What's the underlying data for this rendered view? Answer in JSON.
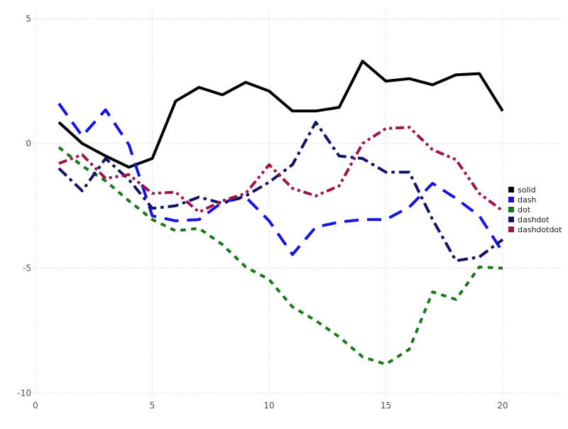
{
  "chart_data": {
    "type": "line",
    "title": "",
    "xlabel": "",
    "ylabel": "",
    "x_ticks": [
      0,
      5,
      10,
      15,
      20
    ],
    "y_ticks": [
      5,
      0,
      -5,
      -10
    ],
    "xlim": [
      0,
      20.6
    ],
    "ylim": [
      -10.4,
      5.3
    ],
    "grid": true,
    "legend_position": "right",
    "x": [
      1,
      2,
      3,
      4,
      5,
      6,
      7,
      8,
      9,
      10,
      11,
      12,
      13,
      14,
      15,
      16,
      17,
      18,
      19,
      20
    ],
    "series": [
      {
        "name": "solid",
        "color": "#000000",
        "dash_style": "solid",
        "values": [
          0.85,
          0.0,
          -0.5,
          -0.95,
          -0.6,
          1.7,
          2.25,
          1.95,
          2.45,
          2.1,
          1.3,
          1.3,
          1.45,
          3.3,
          2.5,
          2.6,
          2.35,
          2.75,
          2.8,
          1.3
        ]
      },
      {
        "name": "dash",
        "color": "#1414e6",
        "dash_style": "dash",
        "values": [
          1.6,
          0.3,
          1.35,
          -0.05,
          -2.9,
          -3.1,
          -3.05,
          -2.35,
          -2.15,
          -3.1,
          -4.45,
          -3.35,
          -3.15,
          -3.05,
          -3.05,
          -2.55,
          -1.6,
          -2.2,
          -2.9,
          -4.35
        ]
      },
      {
        "name": "dot",
        "color": "#187818",
        "dash_style": "dot",
        "values": [
          -0.15,
          -0.9,
          -1.5,
          -2.3,
          -3.05,
          -3.5,
          -3.4,
          -4.05,
          -4.95,
          -5.45,
          -6.55,
          -7.1,
          -7.75,
          -8.55,
          -8.85,
          -8.25,
          -5.95,
          -6.25,
          -4.95,
          -5.0
        ]
      },
      {
        "name": "dashdot",
        "color": "#12126b",
        "dash_style": "dashdot",
        "values": [
          -1.0,
          -1.9,
          -0.6,
          -1.45,
          -2.6,
          -2.5,
          -2.15,
          -2.4,
          -2.1,
          -1.55,
          -0.85,
          0.85,
          -0.5,
          -0.6,
          -1.15,
          -1.15,
          -3.05,
          -4.7,
          -4.55,
          -3.85
        ]
      },
      {
        "name": "dashdotdot",
        "color": "#a01347",
        "dash_style": "dashdotdot",
        "values": [
          -0.8,
          -0.45,
          -1.4,
          -1.25,
          -2.0,
          -1.95,
          -2.75,
          -2.3,
          -2.0,
          -0.85,
          -1.8,
          -2.1,
          -1.7,
          0.0,
          0.6,
          0.65,
          -0.25,
          -0.65,
          -2.0,
          -2.7
        ]
      }
    ],
    "legend_items": [
      "solid",
      "dash",
      "dot",
      "dashdot",
      "dashdotdot"
    ]
  },
  "style": {
    "grid_color": "#cccccc",
    "tick_label_color": "#4d4d4d",
    "legend_text_color": "#1a1a1a",
    "background": "#ffffff"
  }
}
